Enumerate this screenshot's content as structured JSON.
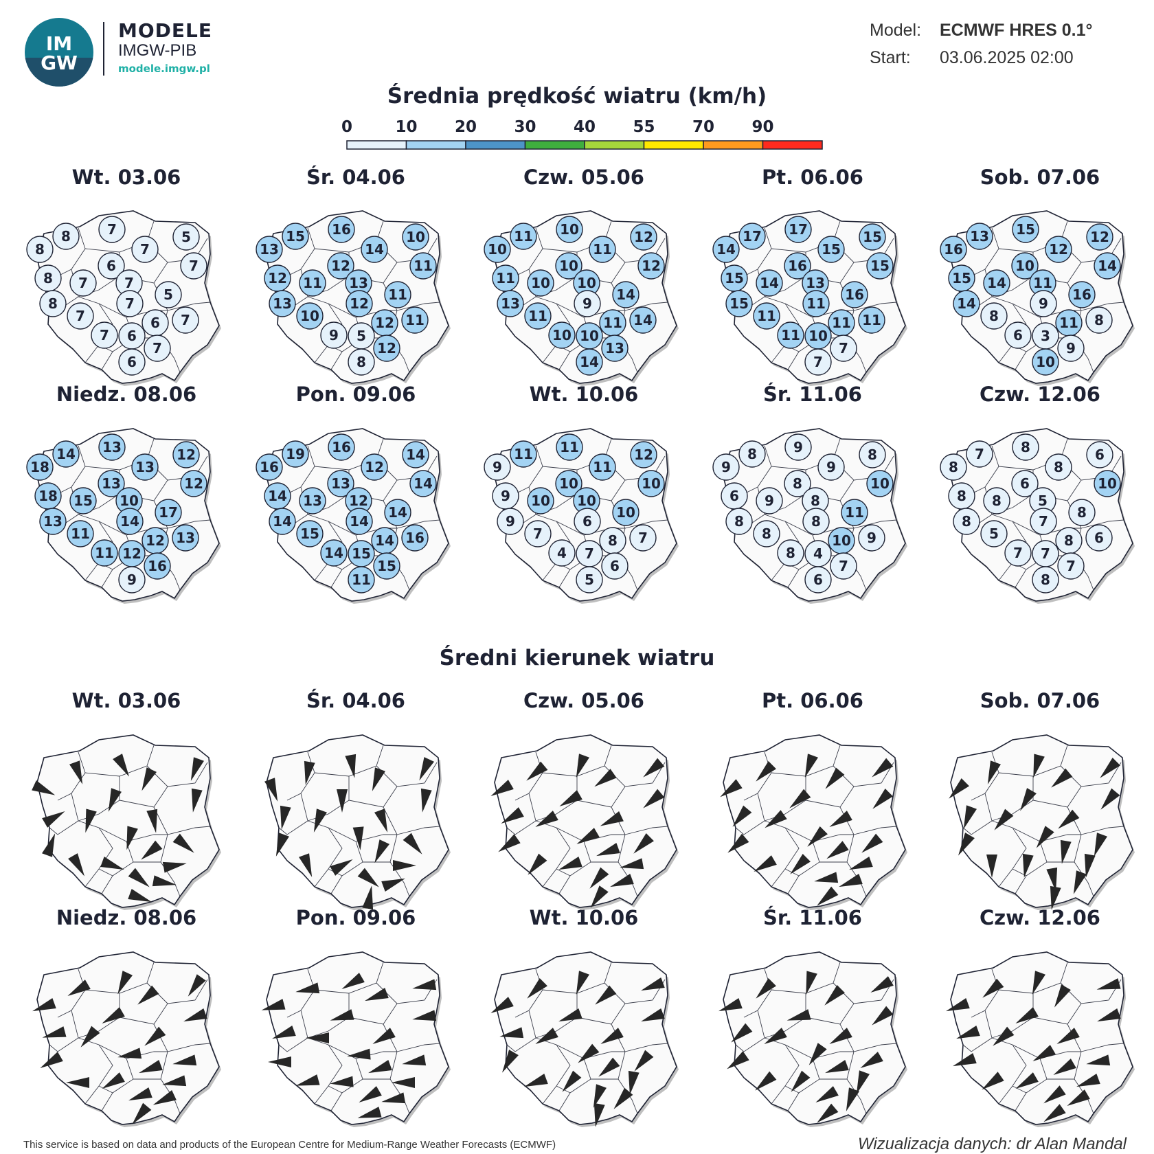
{
  "logo": {
    "line1": "IM",
    "line2": "GW"
  },
  "brand": {
    "title": "MODELE",
    "subtitle": "IMGW-PIB",
    "url": "modele.imgw.pl"
  },
  "meta": {
    "model_label": "Model:",
    "model_value": "ECMWF HRES 0.1°",
    "start_label": "Start:",
    "start_value": "03.06.2025 02:00"
  },
  "speed_section": {
    "title": "Średnia prędkość wiatru (km/h)"
  },
  "legend": {
    "ticks": [
      "0",
      "10",
      "20",
      "30",
      "40",
      "55",
      "70",
      "90"
    ],
    "colors": [
      "#e6f2fb",
      "#a3d3f3",
      "#4d94c8",
      "#3fae3e",
      "#a6d63b",
      "#ffe800",
      "#ff9a1e",
      "#ff2a1e"
    ]
  },
  "direction_section": {
    "title": "Średni kierunek wiatru"
  },
  "days": [
    "Wt. 03.06",
    "Śr. 04.06",
    "Czw. 05.06",
    "Pt. 06.06",
    "Sob. 07.06",
    "Niedz. 08.06",
    "Pon. 09.06",
    "Wt. 10.06",
    "Śr. 11.06",
    "Czw. 12.06"
  ],
  "speed_maps": [
    [
      "8",
      "7",
      "5",
      "8",
      "7",
      "7",
      "6",
      "8",
      "7",
      "7",
      "5",
      "8",
      "7",
      "7",
      "6",
      "7",
      "7",
      "6",
      "7",
      "6"
    ],
    [
      "15",
      "16",
      "10",
      "13",
      "14",
      "11",
      "12",
      "12",
      "11",
      "13",
      "11",
      "13",
      "10",
      "12",
      "12",
      "11",
      "9",
      "5",
      "12",
      "8"
    ],
    [
      "11",
      "10",
      "12",
      "10",
      "11",
      "12",
      "10",
      "11",
      "10",
      "10",
      "14",
      "13",
      "11",
      "9",
      "11",
      "14",
      "10",
      "10",
      "13",
      "14"
    ],
    [
      "17",
      "17",
      "15",
      "14",
      "15",
      "15",
      "16",
      "15",
      "14",
      "13",
      "16",
      "15",
      "11",
      "11",
      "11",
      "11",
      "11",
      "10",
      "7",
      "7"
    ],
    [
      "13",
      "15",
      "12",
      "16",
      "12",
      "14",
      "10",
      "15",
      "14",
      "11",
      "16",
      "14",
      "8",
      "9",
      "11",
      "8",
      "6",
      "3",
      "9",
      "10"
    ],
    [
      "14",
      "13",
      "12",
      "18",
      "13",
      "12",
      "13",
      "18",
      "15",
      "10",
      "17",
      "13",
      "11",
      "14",
      "12",
      "13",
      "11",
      "12",
      "16",
      "9"
    ],
    [
      "19",
      "16",
      "14",
      "16",
      "12",
      "14",
      "13",
      "14",
      "13",
      "12",
      "14",
      "14",
      "15",
      "14",
      "14",
      "16",
      "14",
      "15",
      "15",
      "11"
    ],
    [
      "11",
      "11",
      "12",
      "9",
      "11",
      "10",
      "10",
      "9",
      "10",
      "10",
      "10",
      "9",
      "7",
      "6",
      "8",
      "7",
      "4",
      "7",
      "6",
      "5"
    ],
    [
      "8",
      "9",
      "8",
      "9",
      "9",
      "10",
      "8",
      "6",
      "9",
      "8",
      "11",
      "8",
      "8",
      "8",
      "10",
      "9",
      "8",
      "4",
      "7",
      "6"
    ],
    [
      "7",
      "8",
      "6",
      "8",
      "8",
      "10",
      "6",
      "8",
      "8",
      "5",
      "8",
      "8",
      "5",
      "7",
      "8",
      "6",
      "7",
      "7",
      "7",
      "8"
    ]
  ],
  "direction_maps": [
    [
      160,
      150,
      200,
      115,
      205,
      190,
      200,
      60,
      195,
      170,
      195,
      20,
      130,
      230,
      150,
      110,
      80,
      130,
      100,
      110
    ],
    [
      190,
      170,
      205,
      160,
      200,
      190,
      180,
      190,
      200,
      160,
      175,
      200,
      140,
      205,
      160,
      60,
      90,
      130,
      70,
      10
    ],
    [
      230,
      200,
      230,
      240,
      235,
      230,
      240,
      240,
      240,
      245,
      240,
      235,
      225,
      250,
      220,
      250,
      260,
      220,
      250,
      215
    ],
    [
      225,
      200,
      230,
      235,
      220,
      225,
      230,
      220,
      235,
      240,
      225,
      230,
      230,
      235,
      240,
      225,
      250,
      260,
      250,
      230
    ],
    [
      200,
      195,
      225,
      225,
      230,
      220,
      210,
      200,
      220,
      230,
      215,
      210,
      200,
      190,
      180,
      190,
      190,
      170,
      200,
      190
    ],
    [
      240,
      205,
      215,
      250,
      230,
      250,
      240,
      255,
      220,
      230,
      260,
      240,
      260,
      250,
      270,
      240,
      260,
      250,
      245,
      220
    ],
    [
      260,
      240,
      260,
      255,
      250,
      260,
      255,
      250,
      270,
      240,
      265,
      270,
      260,
      250,
      255,
      265,
      270,
      240,
      260,
      255
    ],
    [
      225,
      200,
      250,
      240,
      230,
      250,
      250,
      260,
      240,
      240,
      230,
      210,
      220,
      230,
      250,
      220,
      190,
      200,
      220,
      190
    ],
    [
      225,
      195,
      240,
      250,
      225,
      230,
      255,
      230,
      240,
      240,
      215,
      235,
      240,
      250,
      230,
      220,
      200,
      240,
      200,
      230
    ],
    [
      230,
      200,
      255,
      250,
      210,
      250,
      240,
      250,
      230,
      240,
      240,
      250,
      260,
      240,
      235,
      240,
      250,
      235,
      240,
      235
    ]
  ],
  "footer": {
    "left": "This service is based on data and products of the European Centre for Medium-Range Weather Forecasts (ECMWF)",
    "right": "Wizualizacja danych: dr Alan Mandal"
  }
}
